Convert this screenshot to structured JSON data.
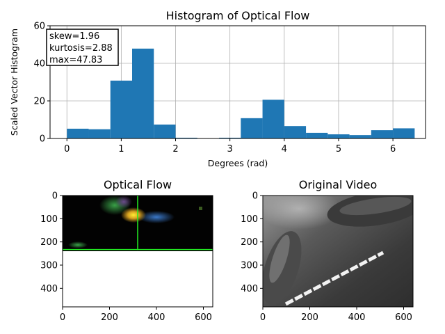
{
  "chart_data": [
    {
      "type": "bar",
      "title": "Histogram of Optical Flow",
      "xlabel": "Degrees (rad)",
      "ylabel": "Scaled Vector Histogram",
      "xlim": [
        -0.31,
        6.6
      ],
      "ylim": [
        0,
        60
      ],
      "xticks": [
        "0",
        "1",
        "2",
        "3",
        "4",
        "5",
        "6"
      ],
      "yticks": [
        "0",
        "20",
        "40",
        "60"
      ],
      "grid": true,
      "bin_edges": [
        0,
        0.4,
        0.8,
        1.2,
        1.6,
        2.0,
        2.4,
        2.8,
        3.2,
        3.6,
        4.0,
        4.4,
        4.8,
        5.2,
        5.6,
        6.0,
        6.4
      ],
      "bins": [
        {
          "x": 0.0,
          "width": 0.4,
          "value": 5.2
        },
        {
          "x": 0.4,
          "width": 0.4,
          "value": 4.9
        },
        {
          "x": 0.8,
          "width": 0.4,
          "value": 30.8
        },
        {
          "x": 1.2,
          "width": 0.4,
          "value": 47.83
        },
        {
          "x": 1.6,
          "width": 0.4,
          "value": 7.4
        },
        {
          "x": 2.0,
          "width": 0.4,
          "value": 0.4
        },
        {
          "x": 2.4,
          "width": 0.4,
          "value": 0.0
        },
        {
          "x": 2.8,
          "width": 0.4,
          "value": 0.4
        },
        {
          "x": 3.2,
          "width": 0.4,
          "value": 10.8
        },
        {
          "x": 3.6,
          "width": 0.4,
          "value": 20.6
        },
        {
          "x": 4.0,
          "width": 0.4,
          "value": 6.6
        },
        {
          "x": 4.4,
          "width": 0.4,
          "value": 3.0
        },
        {
          "x": 4.8,
          "width": 0.4,
          "value": 2.2
        },
        {
          "x": 5.2,
          "width": 0.4,
          "value": 1.8
        },
        {
          "x": 5.6,
          "width": 0.4,
          "value": 4.4
        },
        {
          "x": 6.0,
          "width": 0.4,
          "value": 5.4
        }
      ],
      "bar_color": "#1f77b4",
      "annotation": [
        "skew=1.96",
        "kurtosis=2.88",
        "max=47.83"
      ],
      "annotation_placement": "top-left"
    },
    {
      "type": "image",
      "title": "Optical Flow",
      "xlim": [
        0,
        640
      ],
      "ylim": [
        480,
        0
      ],
      "xticks": [
        "0",
        "200",
        "400",
        "600"
      ],
      "yticks": [
        "0",
        "100",
        "200",
        "300",
        "400"
      ],
      "content": "optical-flow-visualization",
      "image_rows": [
        0,
        235
      ],
      "marker_color": "#22ee22",
      "vertical_marker_x": 320,
      "horizontal_marker_y": 233
    },
    {
      "type": "image",
      "title": "Original Video",
      "xlim": [
        0,
        640
      ],
      "ylim": [
        480,
        0
      ],
      "xticks": [
        "0",
        "200",
        "400",
        "600"
      ],
      "yticks": [
        "0",
        "100",
        "200",
        "300",
        "400"
      ],
      "content": "grayscale-video-frame"
    }
  ]
}
